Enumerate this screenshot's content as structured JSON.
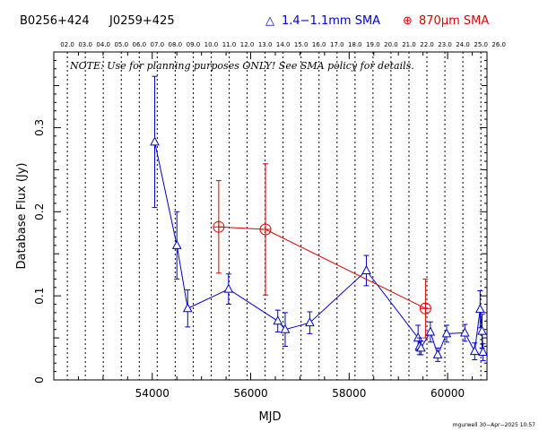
{
  "header": {
    "source1": "B0256+424",
    "source2": "J0259+425",
    "legend_blue_marker": "△",
    "legend_blue_label": "1.4−1.1mm SMA",
    "legend_red_marker": "⊕",
    "legend_red_label": "870μm SMA"
  },
  "note": "NOTE: Use for planning purposes ONLY! See SMA policy for details.",
  "footer": "mgurwell 30−Apr−2025 10:57",
  "colors": {
    "blue": "#0000cc",
    "red": "#dd0000",
    "axis": "#000000"
  },
  "chart_data": {
    "type": "scatter",
    "xlabel": "MJD",
    "ylabel": "Database Flux (Jy)",
    "xlim": [
      52000,
      60800
    ],
    "ylim": [
      0,
      0.39
    ],
    "x_ticks": [
      54000,
      56000,
      58000,
      60000
    ],
    "x_tick_labels": [
      "54000",
      "56000",
      "58000",
      "60000"
    ],
    "y_ticks": [
      0,
      0.1,
      0.2,
      0.3
    ],
    "y_tick_labels": [
      "0",
      "0.1",
      "0.2",
      "0.3"
    ],
    "year_markers": [
      {
        "label": "02.0",
        "mjd": 52275
      },
      {
        "label": "03.0",
        "mjd": 52640
      },
      {
        "label": "04.0",
        "mjd": 53005
      },
      {
        "label": "05.0",
        "mjd": 53371
      },
      {
        "label": "06.0",
        "mjd": 53736
      },
      {
        "label": "07.0",
        "mjd": 54101
      },
      {
        "label": "08.0",
        "mjd": 54466
      },
      {
        "label": "09.0",
        "mjd": 54832
      },
      {
        "label": "10.0",
        "mjd": 55197
      },
      {
        "label": "11.0",
        "mjd": 55562
      },
      {
        "label": "12.0",
        "mjd": 55927
      },
      {
        "label": "13.0",
        "mjd": 56293
      },
      {
        "label": "14.0",
        "mjd": 56658
      },
      {
        "label": "15.0",
        "mjd": 57023
      },
      {
        "label": "16.0",
        "mjd": 57388
      },
      {
        "label": "17.0",
        "mjd": 57754
      },
      {
        "label": "18.0",
        "mjd": 58119
      },
      {
        "label": "19.0",
        "mjd": 58484
      },
      {
        "label": "20.0",
        "mjd": 58849
      },
      {
        "label": "21.0",
        "mjd": 59215
      },
      {
        "label": "22.0",
        "mjd": 59580
      },
      {
        "label": "23.0",
        "mjd": 59945
      },
      {
        "label": "24.0",
        "mjd": 60310
      },
      {
        "label": "25.0",
        "mjd": 60676
      },
      {
        "label": "26.0",
        "mjd": 61041
      }
    ],
    "series": [
      {
        "name": "1.4−1.1mm SMA",
        "color": "#0000cc",
        "marker": "triangle",
        "points": [
          {
            "x": 54050,
            "y": 0.283,
            "err": 0.078
          },
          {
            "x": 54500,
            "y": 0.16,
            "err": 0.04
          },
          {
            "x": 54720,
            "y": 0.085,
            "err": 0.022
          },
          {
            "x": 55550,
            "y": 0.108,
            "err": 0.018
          },
          {
            "x": 56550,
            "y": 0.07,
            "err": 0.013
          },
          {
            "x": 56700,
            "y": 0.06,
            "err": 0.02
          },
          {
            "x": 57200,
            "y": 0.068,
            "err": 0.013
          },
          {
            "x": 58350,
            "y": 0.13,
            "err": 0.018
          },
          {
            "x": 59400,
            "y": 0.05,
            "err": 0.015
          },
          {
            "x": 59430,
            "y": 0.04,
            "err": 0.01
          },
          {
            "x": 59460,
            "y": 0.038,
            "err": 0.008
          },
          {
            "x": 59650,
            "y": 0.057,
            "err": 0.012
          },
          {
            "x": 59800,
            "y": 0.03,
            "err": 0.008
          },
          {
            "x": 59980,
            "y": 0.055,
            "err": 0.01
          },
          {
            "x": 60350,
            "y": 0.056,
            "err": 0.01
          },
          {
            "x": 60550,
            "y": 0.034,
            "err": 0.01
          },
          {
            "x": 60660,
            "y": 0.084,
            "err": 0.022
          },
          {
            "x": 60700,
            "y": 0.058,
            "err": 0.02
          },
          {
            "x": 60720,
            "y": 0.033,
            "err": 0.01
          }
        ]
      },
      {
        "name": "870μm SMA",
        "color": "#dd0000",
        "marker": "circle-plus",
        "points": [
          {
            "x": 55350,
            "y": 0.182,
            "err": 0.055
          },
          {
            "x": 56300,
            "y": 0.179,
            "err": 0.078
          },
          {
            "x": 59550,
            "y": 0.085,
            "err": 0.035
          }
        ]
      }
    ]
  }
}
